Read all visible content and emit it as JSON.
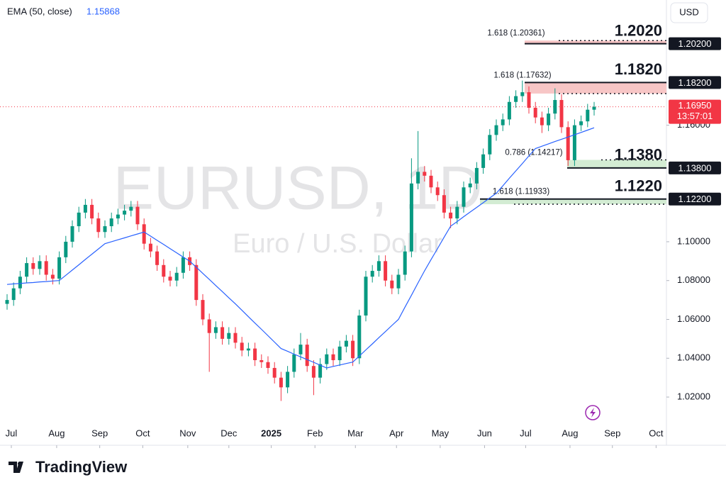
{
  "chart_data": {
    "type": "candlestick",
    "indicator": {
      "name": "EMA (50, close)",
      "last": 1.15868,
      "color": "#2962ff",
      "values": [
        1.078,
        1.0783,
        1.0785,
        1.0788,
        1.079,
        1.0793,
        1.0795,
        1.0798,
        1.08,
        1.0827,
        1.0854,
        1.0881,
        1.0909,
        1.0936,
        1.0963,
        1.099,
        1.1,
        1.101,
        1.102,
        1.103,
        1.104,
        1.105,
        1.1029,
        1.1007,
        1.0986,
        1.0964,
        1.0943,
        1.0921,
        1.09,
        1.0869,
        1.0837,
        1.0806,
        1.0774,
        1.0743,
        1.0711,
        1.068,
        1.0647,
        1.0614,
        1.0581,
        1.0549,
        1.0516,
        1.0483,
        1.045,
        1.0436,
        1.0421,
        1.0407,
        1.0393,
        1.0379,
        1.0364,
        1.035,
        1.0358,
        1.0365,
        1.0373,
        1.038,
        1.0411,
        1.0443,
        1.0474,
        1.0506,
        1.0537,
        1.0569,
        1.06,
        1.0663,
        1.0725,
        1.0788,
        1.085,
        1.0908,
        1.0965,
        1.1023,
        1.108,
        1.1104,
        1.1129,
        1.1153,
        1.1177,
        1.1201,
        1.1226,
        1.125,
        1.1288,
        1.1327,
        1.1365,
        1.1403,
        1.1442,
        1.148,
        1.1492,
        1.1504,
        1.1516,
        1.1528,
        1.1539,
        1.1551,
        1.1563,
        1.1575,
        1.1587
      ]
    },
    "currency": "USD",
    "watermark": "EURUSD, 1D",
    "watermark_sub": "Euro / U.S. Dollar",
    "brand": "TradingView",
    "up_color": "#089981",
    "down_color": "#f23645",
    "candles": {
      "open": [
        1.068,
        1.07,
        1.076,
        1.082,
        1.089,
        1.086,
        1.09,
        1.083,
        1.081,
        1.092,
        1.1,
        1.108,
        1.115,
        1.119,
        1.112,
        1.105,
        1.108,
        1.112,
        1.114,
        1.116,
        1.118,
        1.109,
        1.099,
        1.095,
        1.088,
        1.082,
        1.08,
        1.084,
        1.092,
        1.088,
        1.07,
        1.06,
        1.053,
        1.056,
        1.05,
        1.053,
        1.048,
        1.044,
        1.045,
        1.039,
        1.038,
        1.035,
        1.03,
        1.025,
        1.033,
        1.042,
        1.047,
        1.036,
        1.03,
        1.037,
        1.042,
        1.039,
        1.046,
        1.049,
        1.04,
        1.062,
        1.082,
        1.085,
        1.09,
        1.08,
        1.076,
        1.083,
        1.095,
        1.13,
        1.136,
        1.134,
        1.128,
        1.124,
        1.115,
        1.112,
        1.118,
        1.128,
        1.13,
        1.138,
        1.145,
        1.155,
        1.16,
        1.163,
        1.172,
        1.175,
        1.177,
        1.169,
        1.164,
        1.16,
        1.166,
        1.173,
        1.159,
        1.142,
        1.16,
        1.162,
        1.168
      ],
      "high": [
        1.073,
        1.079,
        1.085,
        1.092,
        1.092,
        1.093,
        1.093,
        1.086,
        1.095,
        1.103,
        1.111,
        1.118,
        1.122,
        1.122,
        1.115,
        1.111,
        1.115,
        1.117,
        1.119,
        1.121,
        1.121,
        1.112,
        1.102,
        1.098,
        1.091,
        1.085,
        1.087,
        1.095,
        1.095,
        1.091,
        1.073,
        1.063,
        1.059,
        1.059,
        1.056,
        1.056,
        1.051,
        1.048,
        1.048,
        1.042,
        1.041,
        1.038,
        1.033,
        1.036,
        1.045,
        1.053,
        1.05,
        1.039,
        1.04,
        1.045,
        1.045,
        1.049,
        1.052,
        1.052,
        1.065,
        1.085,
        1.088,
        1.093,
        1.093,
        1.083,
        1.086,
        1.098,
        1.143,
        1.157,
        1.139,
        1.137,
        1.131,
        1.127,
        1.118,
        1.121,
        1.131,
        1.133,
        1.141,
        1.148,
        1.158,
        1.163,
        1.166,
        1.175,
        1.178,
        1.183,
        1.18,
        1.172,
        1.167,
        1.169,
        1.179,
        1.176,
        1.162,
        1.163,
        1.165,
        1.171,
        1.172
      ],
      "low": [
        1.065,
        1.067,
        1.073,
        1.079,
        1.083,
        1.083,
        1.08,
        1.078,
        1.078,
        1.089,
        1.097,
        1.105,
        1.112,
        1.109,
        1.102,
        1.102,
        1.105,
        1.109,
        1.111,
        1.113,
        1.106,
        1.096,
        1.092,
        1.085,
        1.079,
        1.077,
        1.077,
        1.081,
        1.085,
        1.067,
        1.057,
        1.033,
        1.05,
        1.047,
        1.047,
        1.045,
        1.041,
        1.041,
        1.036,
        1.035,
        1.032,
        1.027,
        1.018,
        1.022,
        1.03,
        1.039,
        1.033,
        1.021,
        1.027,
        1.034,
        1.036,
        1.036,
        1.043,
        1.036,
        1.037,
        1.059,
        1.079,
        1.082,
        1.077,
        1.073,
        1.073,
        1.08,
        1.092,
        1.127,
        1.131,
        1.125,
        1.121,
        1.112,
        1.107,
        1.109,
        1.115,
        1.125,
        1.127,
        1.135,
        1.142,
        1.152,
        1.157,
        1.16,
        1.169,
        1.172,
        1.166,
        1.161,
        1.156,
        1.157,
        1.163,
        1.156,
        1.139,
        1.139,
        1.157,
        1.159,
        1.165
      ],
      "close": [
        1.07,
        1.076,
        1.082,
        1.089,
        1.086,
        1.09,
        1.083,
        1.081,
        1.092,
        1.1,
        1.108,
        1.115,
        1.119,
        1.112,
        1.105,
        1.108,
        1.112,
        1.114,
        1.116,
        1.118,
        1.109,
        1.099,
        1.095,
        1.088,
        1.082,
        1.08,
        1.084,
        1.092,
        1.088,
        1.07,
        1.06,
        1.053,
        1.056,
        1.05,
        1.053,
        1.048,
        1.044,
        1.045,
        1.039,
        1.038,
        1.035,
        1.03,
        1.025,
        1.033,
        1.042,
        1.047,
        1.036,
        1.03,
        1.037,
        1.042,
        1.039,
        1.046,
        1.049,
        1.04,
        1.062,
        1.082,
        1.085,
        1.09,
        1.08,
        1.076,
        1.083,
        1.095,
        1.13,
        1.136,
        1.134,
        1.128,
        1.124,
        1.115,
        1.112,
        1.118,
        1.128,
        1.13,
        1.138,
        1.145,
        1.155,
        1.16,
        1.163,
        1.172,
        1.175,
        1.177,
        1.169,
        1.164,
        1.16,
        1.166,
        1.173,
        1.159,
        1.142,
        1.16,
        1.162,
        1.168,
        1.1695
      ]
    },
    "last_price": {
      "value": 1.1695,
      "label": "1.16950",
      "countdown": "13:57:01"
    },
    "levels": [
      {
        "value": 1.202,
        "label": "1.2020",
        "axis_label": "1.20200",
        "fib_label": "1.618 (1.20361)",
        "fib_value": 1.20361,
        "zone_color": "#f7c6c6"
      },
      {
        "value": 1.182,
        "label": "1.1820",
        "axis_label": "1.18200",
        "fib_label": "1.618 (1.17632)",
        "fib_value": 1.17632,
        "zone_color": "#f7c6c6"
      },
      {
        "value": 1.138,
        "label": "1.1380",
        "axis_label": "1.13800",
        "fib_label": "0.786 (1.14217)",
        "fib_value": 1.14217,
        "zone_color": "#d3ecd3"
      },
      {
        "value": 1.122,
        "label": "1.1220",
        "axis_label": "1.12200",
        "fib_label": "1.618 (1.11933)",
        "fib_value": 1.11933,
        "zone_color": "#d3ecd3"
      }
    ],
    "xlim": [
      -1.087,
      101.087
    ],
    "xticks": [
      {
        "value": 0.65,
        "label": "Jul"
      },
      {
        "value": 7.6,
        "label": "Aug"
      },
      {
        "value": 14.2,
        "label": "Sep"
      },
      {
        "value": 20.8,
        "label": "Oct"
      },
      {
        "value": 27.7,
        "label": "Nov"
      },
      {
        "value": 34.0,
        "label": "Dec"
      },
      {
        "value": 40.5,
        "label": "2025"
      },
      {
        "value": 47.2,
        "label": "Feb"
      },
      {
        "value": 53.4,
        "label": "Mar"
      },
      {
        "value": 59.7,
        "label": "Apr"
      },
      {
        "value": 66.4,
        "label": "May"
      },
      {
        "value": 73.2,
        "label": "Jun"
      },
      {
        "value": 79.5,
        "label": "Jul"
      },
      {
        "value": 86.3,
        "label": "Aug"
      },
      {
        "value": 92.8,
        "label": "Sep"
      },
      {
        "value": 99.5,
        "label": "Oct"
      }
    ],
    "ylim": [
      1.0065,
      1.2245
    ],
    "yticks": [
      {
        "value": 1.02,
        "label": "1.02000"
      },
      {
        "value": 1.04,
        "label": "1.04000"
      },
      {
        "value": 1.06,
        "label": "1.06000"
      },
      {
        "value": 1.08,
        "label": "1.08000"
      },
      {
        "value": 1.1,
        "label": "1.10000"
      },
      {
        "value": 1.16,
        "label": "1.16000"
      }
    ]
  }
}
